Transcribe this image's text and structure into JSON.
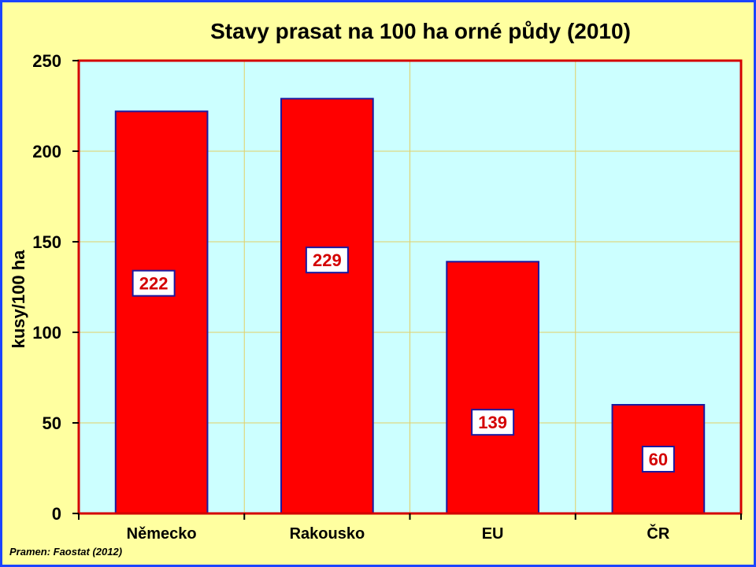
{
  "chart_data": {
    "type": "bar",
    "title": "Stavy prasat na 100 ha orné půdy (2010)",
    "ylabel": "kusy/100 ha",
    "xlabel": "",
    "categories": [
      "Německo",
      "Rakousko",
      "EU",
      "ČR"
    ],
    "values": [
      222,
      229,
      139,
      60
    ],
    "data_labels": [
      "222",
      "229",
      "139",
      "60"
    ],
    "ylim": [
      0,
      250
    ],
    "yticks": [
      0,
      50,
      100,
      150,
      200,
      250
    ],
    "grid": true,
    "legend": "none",
    "source": "Pramen: Faostat (2012)",
    "colors": {
      "bar_fill": "#ff0000",
      "bar_stroke": "#1a1aa0",
      "plot_background": "#ccffff",
      "plot_border": "#d40000",
      "gridline": "#e2cf66",
      "page_background": "#ffffa0",
      "frame": "#1c44ff",
      "data_label_text": "#d40000",
      "data_label_border": "#1a1aa0"
    }
  }
}
